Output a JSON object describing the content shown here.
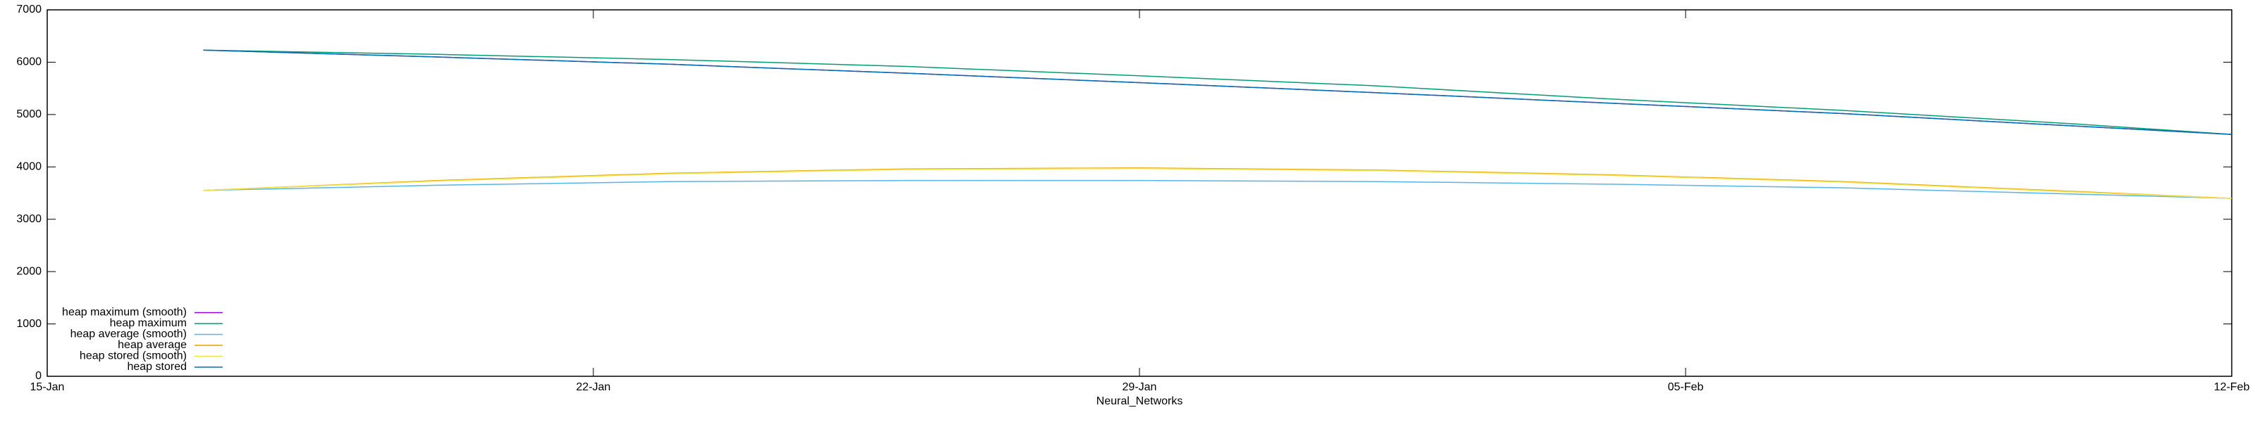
{
  "chart_data": {
    "type": "line",
    "x_label": "Neural_Networks",
    "x": [
      "17-Jan",
      "20-Jan",
      "23-Jan",
      "26-Jan",
      "29-Jan",
      "01-Feb",
      "04-Feb",
      "07-Feb",
      "10-Feb",
      "12-Feb"
    ],
    "xlim": [
      "15-Jan",
      "12-Feb"
    ],
    "xticks": [
      "15-Jan",
      "22-Jan",
      "29-Jan",
      "05-Feb",
      "12-Feb"
    ],
    "ylim": [
      0,
      7000
    ],
    "yticks": [
      0,
      1000,
      2000,
      3000,
      4000,
      5000,
      6000,
      7000
    ],
    "grid": false,
    "legend": "bottom-left",
    "series": [
      {
        "name": "heap maximum (smooth)",
        "color": "#9400d3",
        "values": [
          6230,
          6100,
          5960,
          5790,
          5610,
          5420,
          5220,
          5020,
          4780,
          4620
        ]
      },
      {
        "name": "heap maximum",
        "color": "#009e73",
        "values": [
          6230,
          6150,
          6050,
          5920,
          5740,
          5550,
          5300,
          5080,
          4820,
          4620
        ]
      },
      {
        "name": "heap average (smooth)",
        "color": "#56b4e9",
        "values": [
          3550,
          3650,
          3720,
          3740,
          3740,
          3720,
          3670,
          3600,
          3480,
          3400
        ]
      },
      {
        "name": "heap average",
        "color": "#e69f00",
        "values": [
          3550,
          3740,
          3880,
          3960,
          3980,
          3940,
          3850,
          3720,
          3530,
          3400
        ]
      },
      {
        "name": "heap stored (smooth)",
        "color": "#f0e442",
        "values": [
          3550,
          3730,
          3870,
          3950,
          3970,
          3930,
          3840,
          3710,
          3520,
          3400
        ]
      },
      {
        "name": "heap stored",
        "color": "#0072b2",
        "values": [
          6230,
          6100,
          5960,
          5790,
          5610,
          5420,
          5220,
          5020,
          4780,
          4620
        ]
      }
    ]
  }
}
